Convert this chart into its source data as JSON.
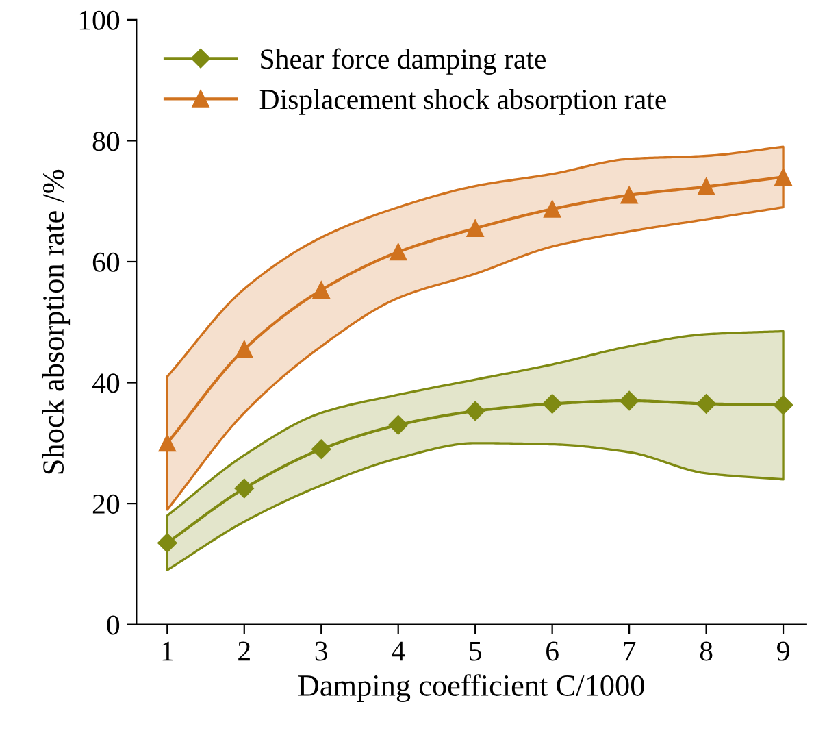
{
  "chart_data": {
    "type": "line",
    "xlabel": "Damping coefficient C/1000",
    "ylabel": "Shock absorption rate /%",
    "x": [
      1,
      2,
      3,
      4,
      5,
      6,
      7,
      8,
      9
    ],
    "series": [
      {
        "name": "Shear force damping rate",
        "color": "#7f8a12",
        "marker": "diamond",
        "values": [
          13.5,
          22.5,
          29,
          33,
          35.3,
          36.5,
          37,
          36.5,
          36.3
        ],
        "lower": [
          9,
          17,
          23,
          27.5,
          30,
          29.8,
          28.5,
          25,
          24
        ],
        "upper": [
          18,
          28,
          35,
          38,
          40.5,
          43,
          46,
          48,
          48.5
        ]
      },
      {
        "name": "Displacement shock absorption rate",
        "color": "#d0721e",
        "marker": "triangle",
        "values": [
          30,
          45.5,
          55.3,
          61.6,
          65.5,
          68.7,
          71,
          72.4,
          74
        ],
        "lower": [
          19,
          35,
          46,
          54,
          58,
          62.5,
          65,
          67,
          69
        ],
        "upper": [
          41,
          55.5,
          64,
          69,
          72.5,
          74.5,
          77,
          77.5,
          79
        ]
      }
    ],
    "xlim": [
      0.6,
      9.3
    ],
    "ylim": [
      0,
      100
    ],
    "xticks": [
      1,
      2,
      3,
      4,
      5,
      6,
      7,
      8,
      9
    ],
    "yticks": [
      0,
      20,
      40,
      60,
      80,
      100
    ],
    "grid": false,
    "legend": "top left",
    "line_style": "solid"
  }
}
